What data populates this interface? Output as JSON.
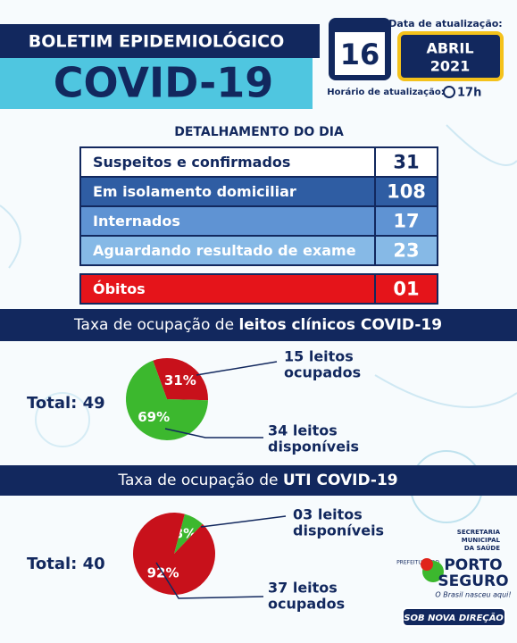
{
  "header": {
    "title": "BOLETIM EPIDEMIOLÓGICO",
    "subtitle": "COVID-19"
  },
  "update": {
    "date_label": "Data de atualização:",
    "day": "16",
    "month": "ABRIL",
    "year": "2021",
    "time_label": "Horário de atualização:",
    "time": "17h"
  },
  "table": {
    "title": "DETALHAMENTO DO DIA",
    "rows": [
      [
        "Suspeitos e confirmados",
        "31"
      ],
      [
        "Em isolamento domiciliar",
        "108"
      ],
      [
        "Internados",
        "17"
      ],
      [
        "Aguardando resultado de exame",
        "23"
      ],
      [
        "Óbitos",
        "01"
      ]
    ]
  },
  "chart_data": [
    {
      "type": "pie",
      "title_parts": [
        "Taxa de ocupação de ",
        "leitos clínicos COVID-19"
      ],
      "total": "Total: 49",
      "categories": [
        "ocupados",
        "disponíveis"
      ],
      "values": [
        31,
        69
      ],
      "value_labels": [
        "31%",
        "69%"
      ],
      "colors": [
        "#c8111b",
        "#3cb82e"
      ],
      "annotations": [
        [
          "15 leitos",
          "ocupados"
        ],
        [
          "34 leitos",
          "disponíveis"
        ]
      ]
    },
    {
      "type": "pie",
      "title_parts": [
        "Taxa de ocupação de ",
        "UTI COVID-19"
      ],
      "total": "Total: 40",
      "categories": [
        "disponíveis",
        "ocupados"
      ],
      "values": [
        8,
        92
      ],
      "value_labels": [
        "8%",
        "92%"
      ],
      "colors": [
        "#3cb82e",
        "#c8111b"
      ],
      "annotations": [
        [
          "03 leitos",
          "disponíveis"
        ],
        [
          "37 leitos",
          "ocupados"
        ]
      ]
    }
  ],
  "logo": {
    "secretaria": [
      "SECRETARIA",
      "MUNICIPAL",
      "DA SAÚDE"
    ],
    "prefeitura": "PREFEITURA DO",
    "city": [
      "PORTO",
      "SEGURO"
    ],
    "slogan": "O Brasil nasceu aqui!",
    "badge": "SOB NOVA DIREÇÃO"
  }
}
